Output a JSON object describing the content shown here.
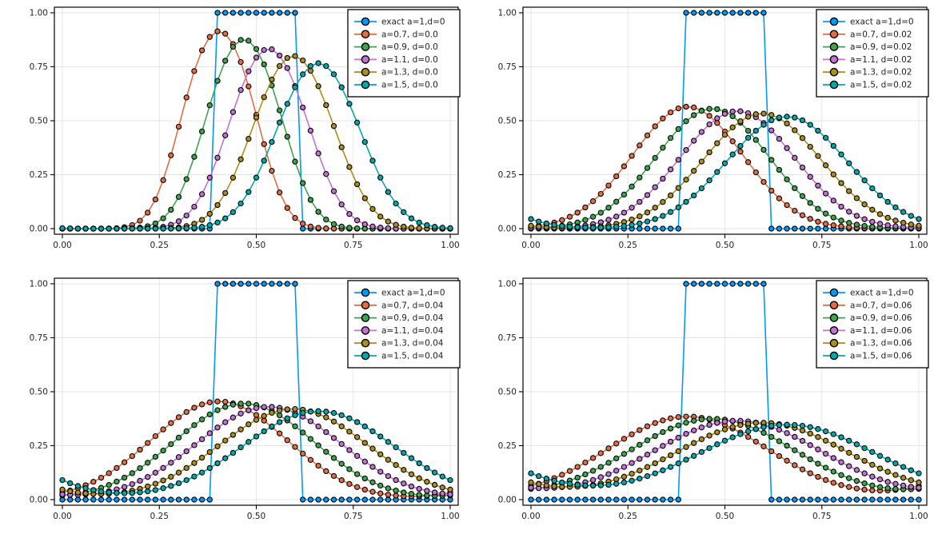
{
  "style": {
    "background": "#ffffff",
    "grid_color": "#e4e4e4",
    "frame_color": "#000000",
    "tick_label_color": "#222222",
    "legend_bg": "#ffffff",
    "legend_border": "#000000",
    "marker_stroke": "#000000",
    "palette": {
      "blue": "#009AFA",
      "orange": "#E26E46",
      "green": "#3EA44E",
      "purple": "#C371D2",
      "olive": "#AC8E1C",
      "teal": "#00A9AD"
    }
  },
  "chart_data": [
    {
      "type": "line",
      "subplot": "top-left",
      "title": "",
      "xlabel": "",
      "ylabel": "",
      "xlim": [
        0,
        1
      ],
      "ylim": [
        0,
        1
      ],
      "grid": true,
      "legend_position": "top-right",
      "xticks": [
        0,
        0.25,
        0.5,
        0.75,
        1
      ],
      "xtick_labels": [
        "0.00",
        "0.25",
        "0.50",
        "0.75",
        "1.00"
      ],
      "yticks": [
        0,
        0.25,
        0.5,
        0.75,
        1
      ],
      "ytick_labels": [
        "0.00",
        "0.25",
        "0.50",
        "0.75",
        "1.00"
      ],
      "x_sampling": {
        "start": 0,
        "step": 0.02,
        "count": 51
      },
      "pulse_halfwidth": 0.1,
      "series": [
        {
          "label": "exact a=1,d=0",
          "color_key": "blue",
          "model": "square_pulse",
          "lo": 0.4,
          "hi": 0.6,
          "amplitude": 1.0
        },
        {
          "label": "a=0.7, d=0.0",
          "color_key": "orange",
          "model": "smoothed_pulse",
          "a": 0.7,
          "d": 0.0,
          "center": 0.404,
          "sigma": 0.0581,
          "peak": 0.915
        },
        {
          "label": "a=0.9, d=0.0",
          "color_key": "green",
          "model": "smoothed_pulse",
          "a": 0.9,
          "d": 0.0,
          "center": 0.468,
          "sigma": 0.0648,
          "peak": 0.877
        },
        {
          "label": "a=1.1, d=0.0",
          "color_key": "purple",
          "model": "smoothed_pulse",
          "a": 1.1,
          "d": 0.0,
          "center": 0.532,
          "sigma": 0.0723,
          "peak": 0.833
        },
        {
          "label": "a=1.3, d=0.0",
          "color_key": "olive",
          "model": "smoothed_pulse",
          "a": 1.3,
          "d": 0.0,
          "center": 0.596,
          "sigma": 0.078,
          "peak": 0.8
        },
        {
          "label": "a=1.5, d=0.0",
          "color_key": "teal",
          "model": "smoothed_pulse",
          "a": 1.5,
          "d": 0.0,
          "center": 0.66,
          "sigma": 0.0839,
          "peak": 0.767
        }
      ]
    },
    {
      "type": "line",
      "subplot": "top-right",
      "title": "",
      "xlabel": "",
      "ylabel": "",
      "xlim": [
        0,
        1
      ],
      "ylim": [
        0,
        1
      ],
      "grid": true,
      "legend_position": "top-right",
      "xticks": [
        0,
        0.25,
        0.5,
        0.75,
        1
      ],
      "xtick_labels": [
        "0.00",
        "0.25",
        "0.50",
        "0.75",
        "1.00"
      ],
      "yticks": [
        0,
        0.25,
        0.5,
        0.75,
        1
      ],
      "ytick_labels": [
        "0.00",
        "0.25",
        "0.50",
        "0.75",
        "1.00"
      ],
      "x_sampling": {
        "start": 0,
        "step": 0.02,
        "count": 51
      },
      "pulse_halfwidth": 0.1,
      "series": [
        {
          "label": "exact a=1,d=0",
          "color_key": "blue",
          "model": "square_pulse",
          "lo": 0.4,
          "hi": 0.6,
          "amplitude": 1.0
        },
        {
          "label": "a=0.7, d=0.02",
          "color_key": "orange",
          "model": "smoothed_pulse",
          "a": 0.7,
          "d": 0.02,
          "center": 0.404,
          "sigma": 0.1281,
          "peak": 0.563
        },
        {
          "label": "a=0.9, d=0.02",
          "color_key": "green",
          "model": "smoothed_pulse",
          "a": 0.9,
          "d": 0.02,
          "center": 0.468,
          "sigma": 0.1307,
          "peak": 0.556
        },
        {
          "label": "a=1.1, d=0.02",
          "color_key": "purple",
          "model": "smoothed_pulse",
          "a": 1.1,
          "d": 0.02,
          "center": 0.532,
          "sigma": 0.134,
          "peak": 0.544
        },
        {
          "label": "a=1.3, d=0.02",
          "color_key": "olive",
          "model": "smoothed_pulse",
          "a": 1.3,
          "d": 0.02,
          "center": 0.596,
          "sigma": 0.1374,
          "peak": 0.533
        },
        {
          "label": "a=1.5, d=0.02",
          "color_key": "teal",
          "model": "smoothed_pulse",
          "a": 1.5,
          "d": 0.02,
          "center": 0.66,
          "sigma": 0.1419,
          "peak": 0.519
        }
      ]
    },
    {
      "type": "line",
      "subplot": "bottom-left",
      "title": "",
      "xlabel": "",
      "ylabel": "",
      "xlim": [
        0,
        1
      ],
      "ylim": [
        0,
        1
      ],
      "grid": true,
      "legend_position": "top-right",
      "xticks": [
        0,
        0.25,
        0.5,
        0.75,
        1
      ],
      "xtick_labels": [
        "0.00",
        "0.25",
        "0.50",
        "0.75",
        "1.00"
      ],
      "yticks": [
        0,
        0.25,
        0.5,
        0.75,
        1
      ],
      "ytick_labels": [
        "0.00",
        "0.25",
        "0.50",
        "0.75",
        "1.00"
      ],
      "x_sampling": {
        "start": 0,
        "step": 0.02,
        "count": 51
      },
      "pulse_halfwidth": 0.1,
      "series": [
        {
          "label": "exact a=1,d=0",
          "color_key": "blue",
          "model": "square_pulse",
          "lo": 0.4,
          "hi": 0.6,
          "amplitude": 1.0
        },
        {
          "label": "a=0.7, d=0.04",
          "color_key": "orange",
          "model": "smoothed_pulse",
          "a": 0.7,
          "d": 0.04,
          "center": 0.404,
          "sigma": 0.1652,
          "peak": 0.452
        },
        {
          "label": "a=0.9, d=0.04",
          "color_key": "green",
          "model": "smoothed_pulse",
          "a": 0.9,
          "d": 0.04,
          "center": 0.468,
          "sigma": 0.1693,
          "peak": 0.44
        },
        {
          "label": "a=1.1, d=0.04",
          "color_key": "purple",
          "model": "smoothed_pulse",
          "a": 1.1,
          "d": 0.04,
          "center": 0.532,
          "sigma": 0.176,
          "peak": 0.43
        },
        {
          "label": "a=1.3, d=0.04",
          "color_key": "olive",
          "model": "smoothed_pulse",
          "a": 1.3,
          "d": 0.04,
          "center": 0.596,
          "sigma": 0.1807,
          "peak": 0.42
        },
        {
          "label": "a=1.5, d=0.04",
          "color_key": "teal",
          "model": "smoothed_pulse",
          "a": 1.5,
          "d": 0.04,
          "center": 0.66,
          "sigma": 0.1856,
          "peak": 0.41
        }
      ]
    },
    {
      "type": "line",
      "subplot": "bottom-right",
      "title": "",
      "xlabel": "",
      "ylabel": "",
      "xlim": [
        0,
        1
      ],
      "ylim": [
        0,
        1
      ],
      "grid": true,
      "legend_position": "top-right",
      "xticks": [
        0,
        0.25,
        0.5,
        0.75,
        1
      ],
      "xtick_labels": [
        "0.00",
        "0.25",
        "0.50",
        "0.75",
        "1.00"
      ],
      "yticks": [
        0,
        0.25,
        0.5,
        0.75,
        1
      ],
      "ytick_labels": [
        "0.00",
        "0.25",
        "0.50",
        "0.75",
        "1.00"
      ],
      "x_sampling": {
        "start": 0,
        "step": 0.02,
        "count": 51
      },
      "pulse_halfwidth": 0.1,
      "series": [
        {
          "label": "exact a=1,d=0",
          "color_key": "blue",
          "model": "square_pulse",
          "lo": 0.4,
          "hi": 0.6,
          "amplitude": 1.0
        },
        {
          "label": "a=0.7, d=0.06",
          "color_key": "orange",
          "model": "smoothed_pulse",
          "a": 0.7,
          "d": 0.06,
          "center": 0.404,
          "sigma": 0.1988,
          "peak": 0.385
        },
        {
          "label": "a=0.9, d=0.06",
          "color_key": "green",
          "model": "smoothed_pulse",
          "a": 0.9,
          "d": 0.06,
          "center": 0.468,
          "sigma": 0.2047,
          "peak": 0.375
        },
        {
          "label": "a=1.1, d=0.06",
          "color_key": "purple",
          "model": "smoothed_pulse",
          "a": 1.1,
          "d": 0.06,
          "center": 0.532,
          "sigma": 0.2103,
          "peak": 0.366
        },
        {
          "label": "a=1.3, d=0.06",
          "color_key": "olive",
          "model": "smoothed_pulse",
          "a": 1.3,
          "d": 0.06,
          "center": 0.596,
          "sigma": 0.2161,
          "peak": 0.357
        },
        {
          "label": "a=1.5, d=0.06",
          "color_key": "teal",
          "model": "smoothed_pulse",
          "a": 1.5,
          "d": 0.06,
          "center": 0.66,
          "sigma": 0.2222,
          "peak": 0.348
        }
      ]
    }
  ]
}
